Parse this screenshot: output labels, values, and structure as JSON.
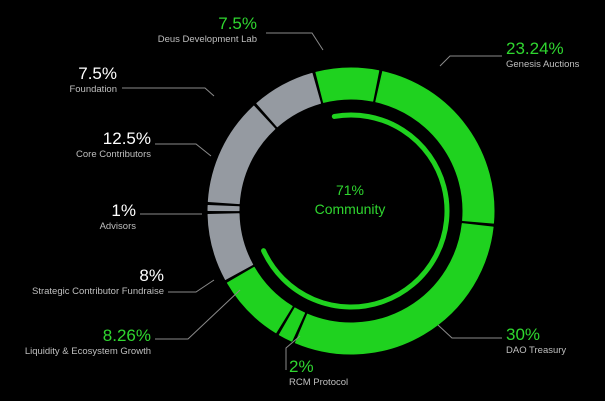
{
  "chart_data": {
    "type": "pie",
    "style": "donut",
    "center_label": {
      "value": "71%",
      "caption": "Community"
    },
    "colors": {
      "green": "#1fd21f",
      "gray": "#959aa1",
      "green_text": "#2fd62f",
      "white_text": "#ffffff"
    },
    "slices": [
      {
        "label": "Deus Development Lab",
        "value": 7.5,
        "display": "7.5%",
        "color": "green"
      },
      {
        "label": "Genesis Auctions",
        "value": 23.24,
        "display": "23.24%",
        "color": "green"
      },
      {
        "label": "DAO Treasury",
        "value": 30,
        "display": "30%",
        "color": "green"
      },
      {
        "label": "RCM Protocol",
        "value": 2,
        "display": "2%",
        "color": "green"
      },
      {
        "label": "Liquidity & Ecosystem Growth",
        "value": 8.26,
        "display": "8.26%",
        "color": "green"
      },
      {
        "label": "Strategic Contributor Fundraise",
        "value": 8,
        "display": "8%",
        "color": "gray"
      },
      {
        "label": "Advisors",
        "value": 1,
        "display": "1%",
        "color": "gray"
      },
      {
        "label": "Core Contributors",
        "value": 12.5,
        "display": "12.5%",
        "color": "gray"
      },
      {
        "label": "Foundation",
        "value": 7.5,
        "display": "7.5%",
        "color": "gray"
      }
    ],
    "inner_arc_value": 71
  }
}
